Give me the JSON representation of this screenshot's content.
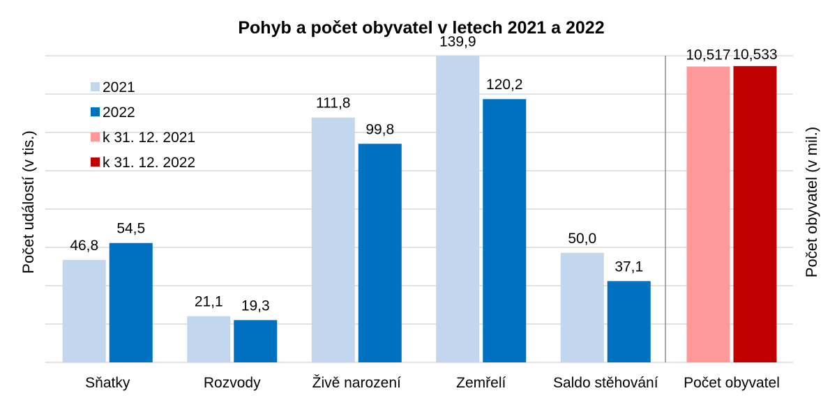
{
  "chart_data": {
    "type": "bar",
    "title": "Pohyb a počet obyvatel v letech 2021 a 2022",
    "ylabel_left": "Počet událostí (v tis.)",
    "ylabel_right": "Počet obyvatel (v mil.)",
    "grid": true,
    "legend_position": "top-left",
    "events": {
      "categories": [
        "Sňatky",
        "Rozvody",
        "Živě narození",
        "Zemřelí",
        "Saldo stěhování"
      ],
      "ylim": [
        0,
        140
      ],
      "series": [
        {
          "name": "2021",
          "color": "#c2d7ee",
          "values": [
            46.8,
            21.1,
            111.8,
            139.9,
            50.0
          ],
          "labels": [
            "46,8",
            "21,1",
            "111,8",
            "139,9",
            "50,0"
          ]
        },
        {
          "name": "2022",
          "color": "#0070c0",
          "values": [
            54.5,
            19.3,
            99.8,
            120.2,
            37.1
          ],
          "labels": [
            "54,5",
            "19,3",
            "99,8",
            "120,2",
            "37,1"
          ]
        }
      ]
    },
    "population": {
      "category": "Počet obyvatel",
      "ylim": [
        0,
        10.9
      ],
      "series": [
        {
          "name": "k 31. 12. 2021",
          "color": "#ff9999",
          "value": 10.517,
          "label": "10,517"
        },
        {
          "name": "k 31. 12. 2022",
          "color": "#c00000",
          "value": 10.533,
          "label": "10,533"
        }
      ]
    }
  }
}
